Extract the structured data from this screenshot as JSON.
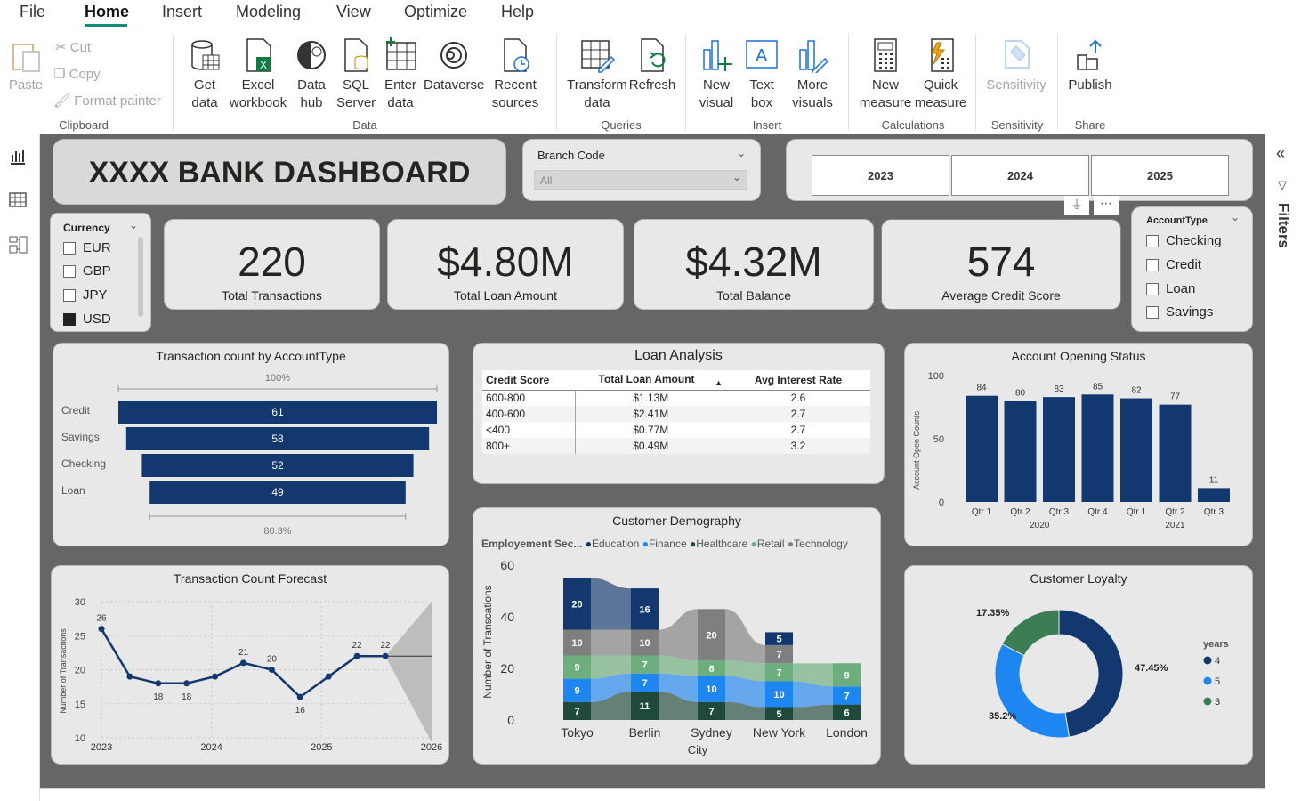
{
  "menu": {
    "file": "File",
    "home": "Home",
    "insert": "Insert",
    "modeling": "Modeling",
    "view": "View",
    "optimize": "Optimize",
    "help": "Help"
  },
  "ribbon": {
    "paste": "Paste",
    "cut": "Cut",
    "copy": "Copy",
    "format_painter": "Format painter",
    "get_data": "Get data",
    "excel_workbook": "Excel workbook",
    "data_hub": "Data hub",
    "sql_server": "SQL Server",
    "enter_data": "Enter data",
    "dataverse": "Dataverse",
    "recent_sources": "Recent sources",
    "transform_data": "Transform data",
    "refresh": "Refresh",
    "new_visual": "New visual",
    "text_box": "Text box",
    "more_visuals": "More visuals",
    "new_measure": "New measure",
    "quick_measure": "Quick measure",
    "sensitivity": "Sensitivity",
    "publish": "Publish",
    "groups": {
      "clipboard": "Clipboard",
      "data": "Data",
      "queries": "Queries",
      "insert": "Insert",
      "calculations": "Calculations",
      "sensitivity": "Sensitivity",
      "share": "Share"
    }
  },
  "filters_label": "Filters",
  "dashboard": {
    "title": "XXXX BANK DASHBOARD",
    "branch": {
      "label": "Branch Code",
      "value": "All"
    },
    "years": [
      "2023",
      "2024",
      "2025"
    ],
    "currency": {
      "label": "Currency",
      "options": [
        "EUR",
        "GBP",
        "JPY",
        "USD"
      ],
      "selected": "USD"
    },
    "account_type": {
      "label": "AccountType",
      "options": [
        "Checking",
        "Credit",
        "Loan",
        "Savings"
      ]
    },
    "kpis": [
      {
        "value": "220",
        "label": "Total Transactions"
      },
      {
        "value": "$4.80M",
        "label": "Total Loan Amount"
      },
      {
        "value": "$4.32M",
        "label": "Total Balance"
      },
      {
        "value": "574",
        "label": "Average Credit Score"
      }
    ],
    "loan": {
      "title": "Loan Analysis",
      "headers": [
        "Credit Score",
        "Total Loan Amount",
        "Avg Interest Rate"
      ],
      "rows": [
        [
          "600-800",
          "$1.13M",
          "2.6"
        ],
        [
          "400-600",
          "$2.41M",
          "2.7"
        ],
        [
          "<400",
          "$0.77M",
          "2.7"
        ],
        [
          "800+",
          "$0.49M",
          "3.2"
        ]
      ]
    },
    "demography_legend": {
      "title": "Employement Sec...",
      "items": [
        "Education",
        "Finance",
        "Healthcare",
        "Retail",
        "Technology"
      ]
    }
  },
  "chart_data": [
    {
      "type": "bar",
      "title": "Transaction count by AccountType",
      "categories": [
        "Credit",
        "Savings",
        "Checking",
        "Loan"
      ],
      "values": [
        61,
        58,
        52,
        49
      ],
      "top_label": "100%",
      "bottom_label": "80.3%",
      "color": "#12386f"
    },
    {
      "type": "bar",
      "title": "Account Opening Status",
      "ylabel": "Account Open Counts",
      "categories": [
        "Qtr 1",
        "Qtr 2",
        "Qtr 3",
        "Qtr 4",
        "Qtr 1",
        "Qtr 2",
        "Qtr 3"
      ],
      "groups": [
        {
          "label": "2020",
          "count": 4
        },
        {
          "label": "2021",
          "count": 3
        }
      ],
      "values": [
        84,
        80,
        83,
        85,
        82,
        77,
        11
      ],
      "yticks": [
        "0",
        "50",
        "100"
      ],
      "ylim": [
        0,
        100
      ],
      "color": "#12386f"
    },
    {
      "type": "line",
      "title": "Transaction Count Forecast",
      "ylabel": "Number of Transactions",
      "xticks": [
        "2023",
        "2024",
        "2025",
        "2026"
      ],
      "yticks": [
        "10",
        "15",
        "20",
        "25",
        "30"
      ],
      "ylim": [
        10,
        30
      ],
      "values": [
        26,
        19,
        18,
        18,
        19,
        21,
        20,
        16,
        19,
        22,
        22
      ],
      "labels": [
        "26",
        "",
        "18",
        "18",
        "",
        "21",
        "20",
        "16",
        "",
        "22",
        "22"
      ],
      "forecast_value": 22,
      "color": "#12386f",
      "forecast_color": "#bdbdbd"
    },
    {
      "type": "bar",
      "title": "Customer Demography",
      "xlabel": "City",
      "ylabel": "Number of Transcations",
      "yticks": [
        "0",
        "20",
        "40",
        "60"
      ],
      "ylim": [
        0,
        60
      ],
      "categories": [
        "Tokyo",
        "Berlin",
        "Sydney",
        "New York",
        "London"
      ],
      "series": [
        {
          "name": "Technology",
          "color": "#7f7f7f",
          "values": [
            10,
            10,
            20,
            7,
            0
          ]
        },
        {
          "name": "Finance",
          "color": "#1e86f0",
          "values": [
            9,
            7,
            10,
            10,
            7
          ]
        },
        {
          "name": "Retail",
          "color": "#6cae7d",
          "values": [
            9,
            7,
            6,
            7,
            9
          ]
        },
        {
          "name": "Healthcare",
          "color": "#1f4a3a",
          "values": [
            7,
            11,
            7,
            5,
            6
          ]
        },
        {
          "name": "Education",
          "color": "#12386f",
          "values": [
            20,
            16,
            0,
            5,
            0
          ]
        }
      ]
    },
    {
      "type": "pie",
      "title": "Customer Loyalty",
      "legend_title": "years",
      "slices": [
        {
          "label": "4",
          "value": 47.45,
          "text": "47.45%",
          "color": "#12386f"
        },
        {
          "label": "5",
          "value": 35.2,
          "text": "35.2%",
          "color": "#1e86f0"
        },
        {
          "label": "3",
          "value": 17.35,
          "text": "17.35%",
          "color": "#3c7d55"
        }
      ]
    }
  ]
}
